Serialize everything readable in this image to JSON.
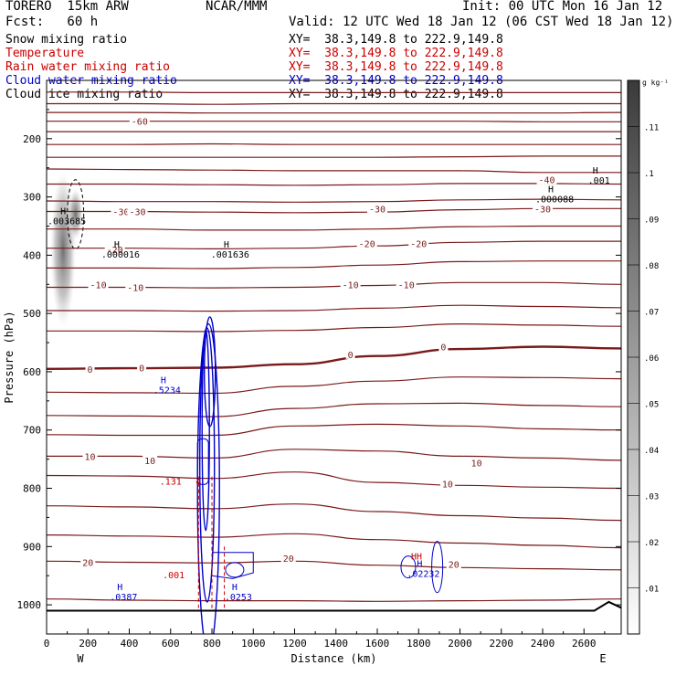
{
  "header": {
    "model": "TORERO  15km ARW",
    "center": "NCAR/MMM",
    "init": "Init: 00 UTC Mon 16 Jan 12",
    "fcst": "Fcst:   60 h",
    "valid": "Valid: 12 UTC Wed 18 Jan 12 (06 CST Wed 18 Jan 12)"
  },
  "legend": [
    {
      "label": "Snow mixing ratio",
      "xy": "XY=  38.3,149.8 to 222.9,149.8",
      "color": "#000000"
    },
    {
      "label": "Temperature",
      "xy": "XY=  38.3,149.8 to 222.9,149.8",
      "color": "#cc0000"
    },
    {
      "label": "Rain water mixing ratio",
      "xy": "XY=  38.3,149.8 to 222.9,149.8",
      "color": "#cc0000"
    },
    {
      "label": "Cloud water mixing ratio",
      "xy": "XY=  38.3,149.8 to 222.9,149.8",
      "color": "#0000cc"
    },
    {
      "label": "Cloud ice mixing ratio",
      "xy": "XY=  38.3,149.8 to 222.9,149.8",
      "color": "#000000"
    }
  ],
  "chart_data": {
    "type": "cross-section",
    "xlabel": "Distance (km)",
    "ylabel": "Pressure (hPa)",
    "xlim": [
      0,
      2780
    ],
    "ylim": [
      1050,
      100
    ],
    "x_ticks": [
      "0",
      "200",
      "400",
      "600",
      "800",
      "1000",
      "1200",
      "1400",
      "1600",
      "1800",
      "2000",
      "2200",
      "2400",
      "2600"
    ],
    "y_ticks": [
      "200",
      "300",
      "400",
      "500",
      "600",
      "700",
      "800",
      "900",
      "1000"
    ],
    "x_end_labels": {
      "left": "W",
      "right": "E"
    },
    "colorbar": {
      "unit": "g kg⁻¹",
      "ticks": [
        ".01",
        ".02",
        ".03",
        ".04",
        ".05",
        ".06",
        ".07",
        ".08",
        ".09",
        ".1",
        ".11"
      ],
      "range": [
        0,
        0.12
      ]
    },
    "temperature_labels": [
      {
        "text": "-60",
        "x": 450,
        "p": 170
      },
      {
        "text": "-40",
        "x": 2420,
        "p": 270
      },
      {
        "text": "-30",
        "x": 360,
        "p": 325
      },
      {
        "text": "-30",
        "x": 440,
        "p": 325
      },
      {
        "text": "-30",
        "x": 1600,
        "p": 320
      },
      {
        "text": "-30",
        "x": 2400,
        "p": 320
      },
      {
        "text": "-20",
        "x": 330,
        "p": 390
      },
      {
        "text": "-20",
        "x": 1550,
        "p": 380
      },
      {
        "text": "-20",
        "x": 1800,
        "p": 380
      },
      {
        "text": "-10",
        "x": 250,
        "p": 450
      },
      {
        "text": "-10",
        "x": 430,
        "p": 455
      },
      {
        "text": "-10",
        "x": 1470,
        "p": 450
      },
      {
        "text": "-10",
        "x": 1740,
        "p": 450
      },
      {
        "text": "0",
        "x": 210,
        "p": 595
      },
      {
        "text": "0",
        "x": 460,
        "p": 593
      },
      {
        "text": "0",
        "x": 1470,
        "p": 570
      },
      {
        "text": "0",
        "x": 1920,
        "p": 557
      },
      {
        "text": "10",
        "x": 210,
        "p": 745
      },
      {
        "text": "10",
        "x": 500,
        "p": 752
      },
      {
        "text": "10",
        "x": 1940,
        "p": 792
      },
      {
        "text": "10",
        "x": 2080,
        "p": 756
      },
      {
        "text": "20",
        "x": 200,
        "p": 927
      },
      {
        "text": "20",
        "x": 1170,
        "p": 920
      },
      {
        "text": "20",
        "x": 1970,
        "p": 930
      }
    ],
    "extrema": [
      {
        "mark": "H",
        "value": ".003685",
        "x": 80,
        "p": 330,
        "color": "#000000"
      },
      {
        "mark": "H",
        "value": ".000016",
        "x": 340,
        "p": 387,
        "color": "#000000"
      },
      {
        "mark": "H",
        "value": ".001636",
        "x": 870,
        "p": 387,
        "color": "#000000"
      },
      {
        "mark": "H",
        "value": ".000088",
        "x": 2440,
        "p": 292,
        "color": "#000000"
      },
      {
        "mark": "H",
        "value": ".001",
        "x": 2655,
        "p": 260,
        "color": "#000000"
      },
      {
        "mark": "H",
        "value": ".5234",
        "x": 565,
        "p": 620,
        "color": "#0000cc"
      },
      {
        "mark": "H",
        "value": ".0387",
        "x": 355,
        "p": 975,
        "color": "#0000cc"
      },
      {
        "mark": "H",
        "value": ".0253",
        "x": 910,
        "p": 975,
        "color": "#0000cc"
      },
      {
        "mark": "H",
        "value": ".02232",
        "x": 1805,
        "p": 935,
        "color": "#0000cc"
      },
      {
        "mark": "HH",
        "value": "",
        "x": 1790,
        "p": 922,
        "color": "#cc0000"
      }
    ],
    "rain_labels": [
      {
        "text": ".131",
        "x": 600,
        "p": 794
      },
      {
        "text": "4",
        "x": 735,
        "p": 794
      },
      {
        "text": ".001",
        "x": 615,
        "p": 954
      }
    ],
    "temperature_series": [
      {
        "level": "-60",
        "p": [
          120,
          120,
          121,
          121,
          121,
          121,
          121,
          121
        ]
      },
      {
        "level": "-60",
        "p": [
          140,
          140,
          141,
          140,
          140,
          140,
          140,
          140
        ]
      },
      {
        "level": "-60",
        "p": [
          155,
          155,
          156,
          156,
          156,
          156,
          156,
          155
        ]
      },
      {
        "level": "-60",
        "p": [
          170,
          170,
          170,
          170,
          170,
          170,
          171,
          171
        ]
      },
      {
        "level": "-60",
        "p": [
          188,
          188,
          188,
          188,
          188,
          188,
          188,
          188
        ]
      },
      {
        "level": "-50",
        "p": [
          210,
          210,
          209,
          210,
          210,
          210,
          210,
          210
        ]
      },
      {
        "level": "-50",
        "p": [
          232,
          232,
          232,
          232,
          232,
          231,
          230,
          230
        ]
      },
      {
        "level": "-40",
        "p": [
          252,
          253,
          254,
          255,
          255,
          255,
          258,
          258
        ]
      },
      {
        "level": "-40",
        "p": [
          278,
          278,
          279,
          280,
          279,
          277,
          277,
          278
        ]
      },
      {
        "level": "-30",
        "p": [
          307,
          308,
          308,
          309,
          308,
          305,
          304,
          305
        ]
      },
      {
        "level": "-30",
        "p": [
          325,
          325,
          326,
          327,
          326,
          322,
          320,
          320
        ]
      },
      {
        "level": "-20",
        "p": [
          355,
          355,
          357,
          357,
          355,
          351,
          350,
          350
        ]
      },
      {
        "level": "-20",
        "p": [
          388,
          388,
          389,
          388,
          384,
          378,
          376,
          376
        ]
      },
      {
        "level": "-10",
        "p": [
          422,
          422,
          423,
          421,
          417,
          411,
          410,
          410
        ]
      },
      {
        "level": "-10",
        "p": [
          455,
          455,
          456,
          455,
          452,
          447,
          447,
          450
        ]
      },
      {
        "level": "-10",
        "p": [
          495,
          495,
          496,
          495,
          491,
          486,
          488,
          490
        ]
      },
      {
        "level": "0",
        "p": [
          530,
          530,
          531,
          529,
          524,
          518,
          520,
          522
        ]
      },
      {
        "level": "0",
        "p": [
          595,
          594,
          593,
          587,
          573,
          561,
          557,
          560
        ]
      },
      {
        "level": "10",
        "p": [
          635,
          636,
          637,
          625,
          616,
          609,
          610,
          612
        ]
      },
      {
        "level": "10",
        "p": [
          675,
          676,
          677,
          663,
          655,
          654,
          658,
          660
        ]
      },
      {
        "level": "10",
        "p": [
          708,
          709,
          709,
          693,
          690,
          693,
          698,
          700
        ]
      },
      {
        "level": "10",
        "p": [
          745,
          745,
          748,
          733,
          736,
          745,
          748,
          752
        ]
      },
      {
        "level": "10",
        "p": [
          778,
          779,
          783,
          772,
          790,
          795,
          798,
          800
        ]
      },
      {
        "level": "20",
        "p": [
          830,
          832,
          835,
          827,
          840,
          847,
          851,
          855
        ]
      },
      {
        "level": "20",
        "p": [
          880,
          882,
          884,
          878,
          888,
          894,
          898,
          902
        ]
      },
      {
        "level": "20",
        "p": [
          925,
          927,
          928,
          925,
          932,
          936,
          938,
          940
        ]
      },
      {
        "level": "20",
        "p": [
          990,
          992,
          993,
          993,
          994,
          993,
          992,
          990
        ]
      }
    ],
    "temperature_x": [
      0,
      400,
      800,
      1200,
      1600,
      2000,
      2400,
      2780
    ]
  }
}
